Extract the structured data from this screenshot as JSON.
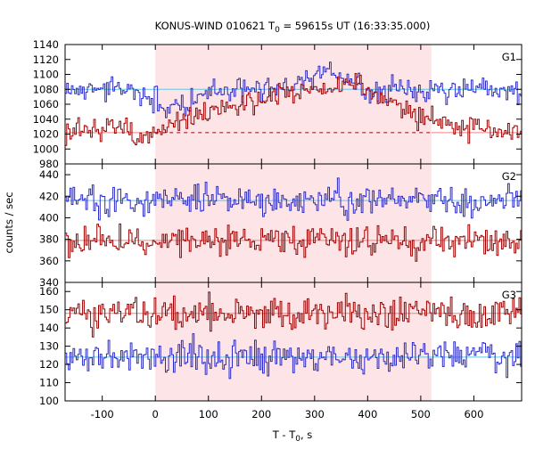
{
  "title": {
    "prefix": "KONUS-WIND 010621 T",
    "sub": "0",
    "suffix": " = 59615s UT (16:33:35.000)"
  },
  "xlabel": {
    "prefix": "T - T",
    "sub": "0",
    "suffix": ", s"
  },
  "ylabel": "counts / sec",
  "chart_data": {
    "type": "line",
    "style": "step",
    "x_range": [
      -170,
      690
    ],
    "x_ticks": [
      -100,
      0,
      100,
      200,
      300,
      400,
      500,
      600
    ],
    "bin_width_s": 3,
    "highlight_interval": {
      "x": [
        0,
        520
      ],
      "color": "#fde4e6"
    },
    "colors": {
      "blue_series": "#2b2bcc",
      "red_series": "#a00000",
      "blue_fit": "#5ec8e8",
      "red_fit": "#f08080"
    },
    "grid": false,
    "legend": "none",
    "panels": [
      {
        "label": "G1",
        "ylim": [
          980,
          1140
        ],
        "y_ticks": [
          980,
          1000,
          1020,
          1040,
          1060,
          1080,
          1100,
          1120,
          1140
        ],
        "series": [
          {
            "color": "blue",
            "baseline": 1080,
            "points": [
              [
                -170,
                1078
              ],
              [
                -100,
                1082
              ],
              [
                -30,
                1074
              ],
              [
                0,
                1062
              ],
              [
                20,
                1052
              ],
              [
                40,
                1060
              ],
              [
                60,
                1060
              ],
              [
                80,
                1070
              ],
              [
                100,
                1074
              ],
              [
                130,
                1080
              ],
              [
                160,
                1082
              ],
              [
                200,
                1082
              ],
              [
                250,
                1086
              ],
              [
                300,
                1098
              ],
              [
                340,
                1100
              ],
              [
                370,
                1092
              ],
              [
                400,
                1074
              ],
              [
                430,
                1072
              ],
              [
                460,
                1082
              ],
              [
                490,
                1080
              ],
              [
                520,
                1080
              ],
              [
                580,
                1082
              ],
              [
                620,
                1080
              ],
              [
                690,
                1078
              ]
            ],
            "noise": 8
          },
          {
            "color": "red",
            "baseline": 1022,
            "baseline_dash": true,
            "points": [
              [
                -170,
                1022
              ],
              [
                -130,
                1026
              ],
              [
                -100,
                1032
              ],
              [
                -80,
                1034
              ],
              [
                -55,
                1030
              ],
              [
                -40,
                1010
              ],
              [
                -25,
                1018
              ],
              [
                0,
                1024
              ],
              [
                20,
                1030
              ],
              [
                50,
                1040
              ],
              [
                80,
                1044
              ],
              [
                120,
                1054
              ],
              [
                160,
                1060
              ],
              [
                200,
                1068
              ],
              [
                250,
                1074
              ],
              [
                300,
                1080
              ],
              [
                340,
                1084
              ],
              [
                370,
                1088
              ],
              [
                400,
                1080
              ],
              [
                430,
                1070
              ],
              [
                460,
                1056
              ],
              [
                490,
                1046
              ],
              [
                520,
                1036
              ],
              [
                560,
                1030
              ],
              [
                600,
                1026
              ],
              [
                650,
                1024
              ],
              [
                690,
                1022
              ]
            ],
            "noise": 8
          }
        ]
      },
      {
        "label": "G2",
        "ylim": [
          340,
          450
        ],
        "y_ticks": [
          340,
          360,
          380,
          400,
          420,
          440
        ],
        "series": [
          {
            "color": "blue",
            "baseline": 416,
            "points": [
              [
                -170,
                416
              ],
              [
                690,
                416
              ]
            ],
            "noise": 7
          },
          {
            "color": "red",
            "baseline": 379,
            "points": [
              [
                -170,
                379
              ],
              [
                690,
                379
              ]
            ],
            "noise": 7
          }
        ]
      },
      {
        "label": "G3",
        "ylim": [
          100,
          165
        ],
        "y_ticks": [
          100,
          110,
          120,
          130,
          140,
          150,
          160
        ],
        "series": [
          {
            "color": "red",
            "baseline": 148,
            "points": [
              [
                -170,
                148
              ],
              [
                690,
                148
              ]
            ],
            "noise": 4.5
          },
          {
            "color": "blue",
            "baseline": 124,
            "points": [
              [
                -170,
                124
              ],
              [
                690,
                124
              ]
            ],
            "noise": 4.5
          }
        ]
      }
    ]
  }
}
